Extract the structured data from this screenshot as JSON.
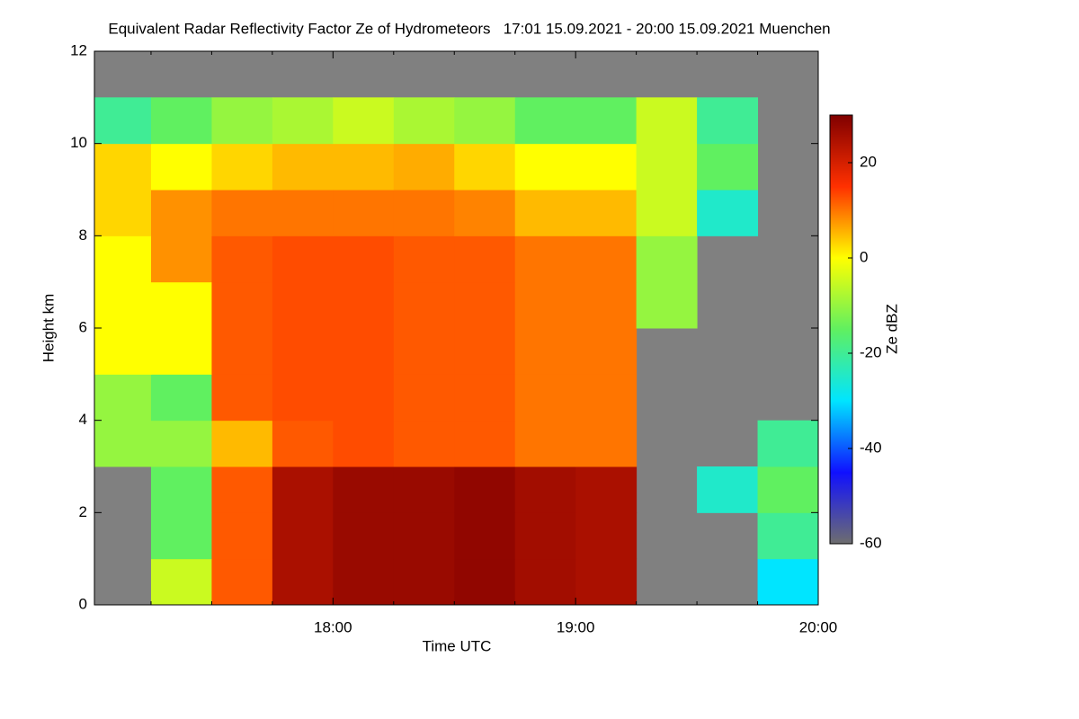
{
  "chart_data": {
    "type": "heatmap",
    "title": "Equivalent Radar Reflectivity Factor Ze of Hydrometeors   17:01 15.09.2021 - 20:00 15.09.2021 Muenchen",
    "xlabel": "Time UTC",
    "ylabel": "Height km",
    "colorbar_label": "Ze dBZ",
    "xlim": [
      "17:01",
      "20:00"
    ],
    "xticks": [
      "18:00",
      "19:00",
      "20:00"
    ],
    "x_minor_ticks": [
      "17:15",
      "17:30",
      "17:45",
      "18:15",
      "18:30",
      "18:45",
      "19:15",
      "19:30",
      "19:45"
    ],
    "ylim": [
      0,
      12
    ],
    "yticks": [
      0,
      2,
      4,
      6,
      8,
      10,
      12
    ],
    "zlim": [
      -60,
      30
    ],
    "colorbar_ticks": [
      -60,
      -40,
      -20,
      0,
      20
    ],
    "colorscale": [
      "#6e6e6e",
      "#1010ff",
      "#00e5ff",
      "#60f060",
      "#ffff00",
      "#ff3000",
      "#800000"
    ],
    "background": "#808080",
    "x_edges": [
      "17:01",
      "17:15",
      "17:30",
      "17:45",
      "18:00",
      "18:15",
      "18:30",
      "18:45",
      "19:00",
      "19:15",
      "19:30",
      "19:45",
      "20:00"
    ],
    "y_edges": [
      0,
      1,
      2,
      3,
      4,
      5,
      6,
      7,
      8,
      9,
      10,
      11,
      12
    ],
    "z": [
      [
        null,
        -5,
        12,
        25,
        27,
        27,
        28,
        26,
        25,
        null,
        null,
        -30
      ],
      [
        null,
        -15,
        12,
        25,
        27,
        27,
        28,
        26,
        25,
        null,
        null,
        -20
      ],
      [
        null,
        -15,
        12,
        25,
        27,
        27,
        28,
        26,
        25,
        null,
        -25,
        -15
      ],
      [
        -10,
        -10,
        5,
        12,
        13,
        12,
        12,
        10,
        10,
        null,
        null,
        -20
      ],
      [
        -10,
        -15,
        12,
        13,
        13,
        12,
        12,
        10,
        10,
        null,
        null,
        null
      ],
      [
        0,
        0,
        12,
        13,
        13,
        12,
        12,
        10,
        10,
        null,
        null,
        null
      ],
      [
        0,
        0,
        12,
        13,
        13,
        12,
        12,
        10,
        10,
        -10,
        null,
        null
      ],
      [
        0,
        8,
        12,
        13,
        13,
        12,
        12,
        10,
        10,
        -10,
        null,
        null
      ],
      [
        3,
        8,
        10,
        10,
        10,
        10,
        9,
        5,
        5,
        -5,
        -25,
        null
      ],
      [
        3,
        0,
        3,
        5,
        5,
        6,
        3,
        0,
        0,
        -5,
        -15,
        null
      ],
      [
        -20,
        -15,
        -10,
        -8,
        -5,
        -8,
        -10,
        -15,
        -15,
        -5,
        -20,
        null
      ],
      [
        null,
        null,
        null,
        null,
        null,
        null,
        null,
        null,
        null,
        null,
        null,
        null
      ]
    ]
  }
}
